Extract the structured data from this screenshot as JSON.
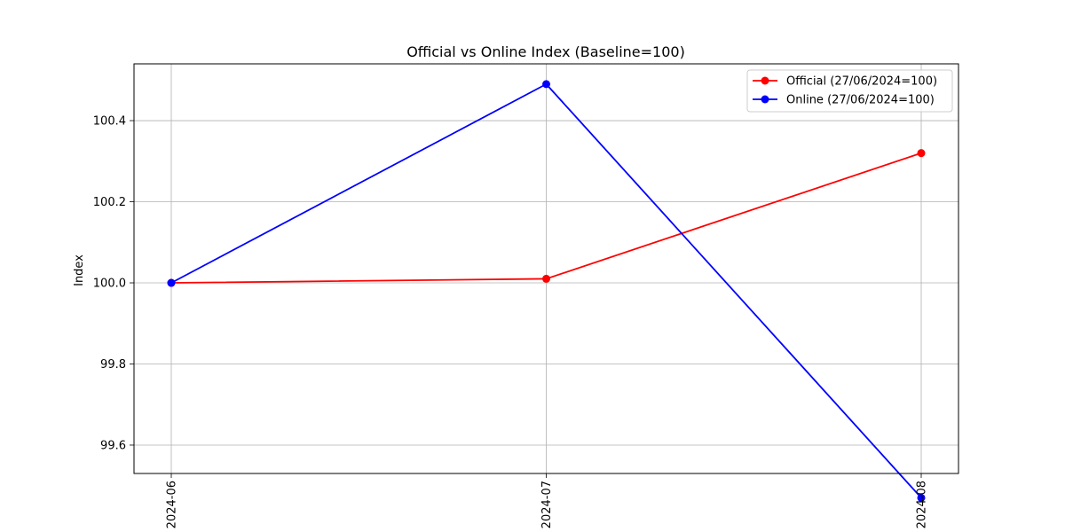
{
  "chart_data": {
    "type": "line",
    "title": "Official vs Online Index (Baseline=100)",
    "xlabel": "",
    "ylabel": "Index",
    "categories": [
      "2024-06",
      "2024-07",
      "2024-08"
    ],
    "ylim": [
      99.53,
      100.54
    ],
    "yticks": [
      99.6,
      99.8,
      100.0,
      100.2,
      100.4
    ],
    "ytick_labels": [
      "99.6",
      "99.8",
      "100.0",
      "100.2",
      "100.4"
    ],
    "grid": true,
    "legend_position": "top-right",
    "series": [
      {
        "name": "Official (27/06/2024=100)",
        "color": "#ff0000",
        "values": [
          100.0,
          100.01,
          100.32
        ]
      },
      {
        "name": "Online (27/06/2024=100)",
        "color": "#0000ff",
        "values": [
          100.0,
          100.49,
          99.47
        ]
      }
    ]
  }
}
